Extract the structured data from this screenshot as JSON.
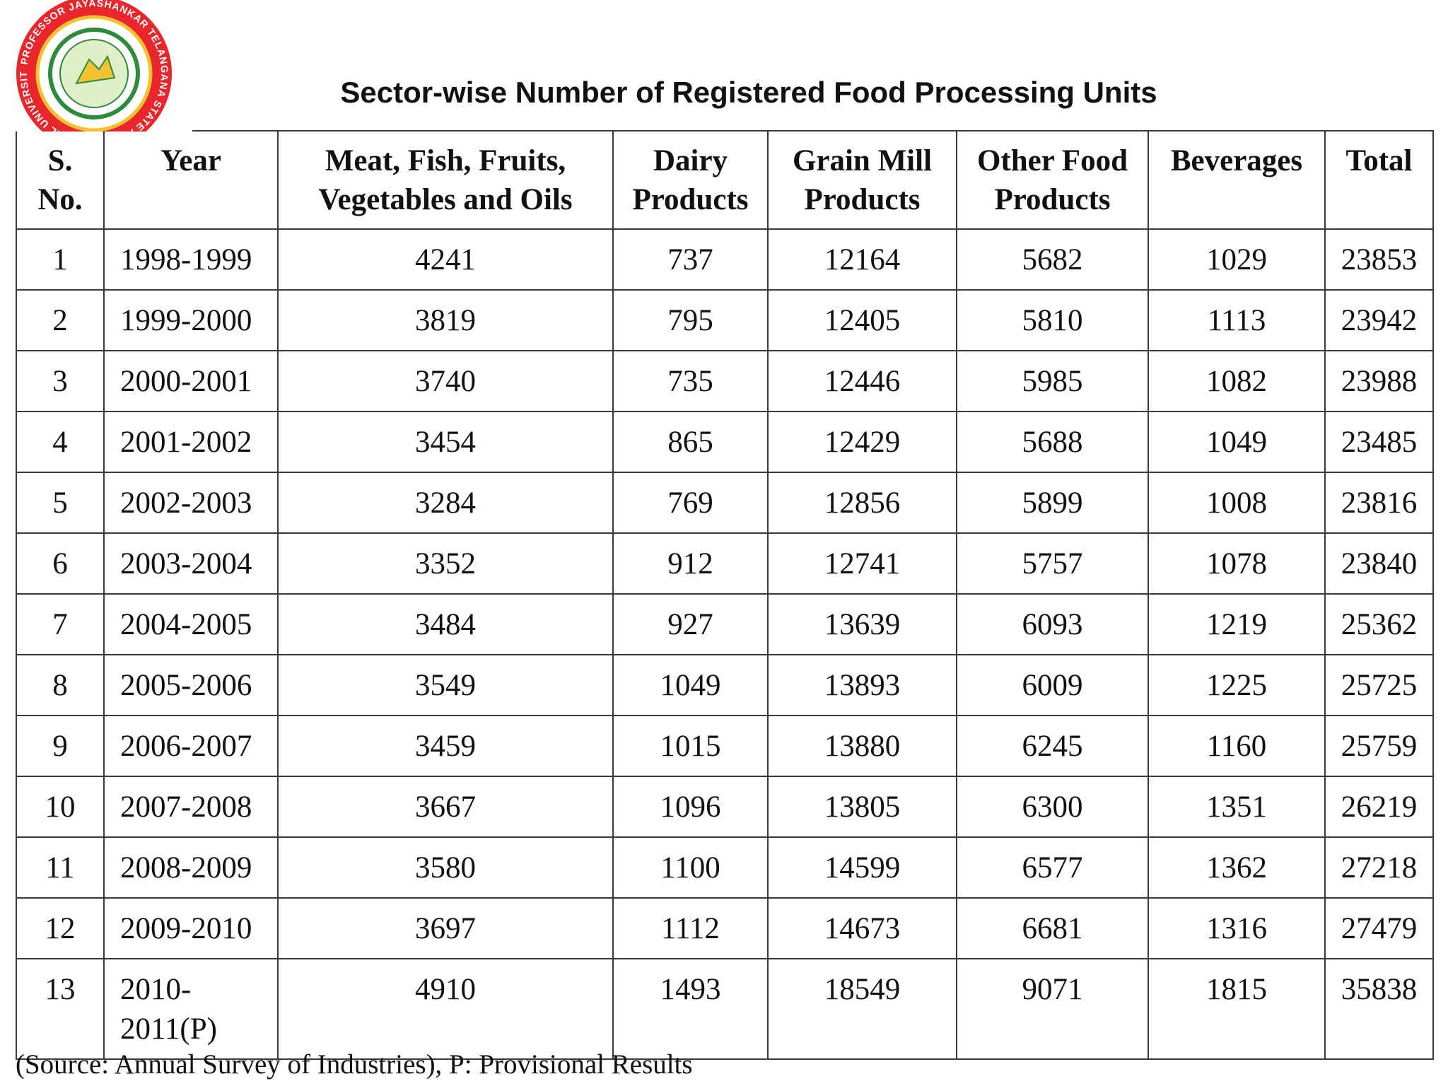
{
  "logo": {
    "ring_text": "PROFESSOR JAYASHANKAR TELANGANA STATE AGRICULTURAL UNIVERSITY"
  },
  "header": {
    "title": "Sector-wise Number of Registered Food Processing Units"
  },
  "table": {
    "headers": [
      [
        "S.",
        "No."
      ],
      [
        "Year"
      ],
      [
        "Meat, Fish, Fruits,",
        "Vegetables and Oils"
      ],
      [
        "Dairy",
        "Products"
      ],
      [
        "Grain Mill",
        "Products"
      ],
      [
        "Other Food",
        "Products"
      ],
      [
        "Beverages"
      ],
      [
        "Total"
      ]
    ],
    "rows": [
      [
        1,
        "1998-1999",
        4241,
        737,
        12164,
        5682,
        1029,
        23853
      ],
      [
        2,
        "1999-2000",
        3819,
        795,
        12405,
        5810,
        1113,
        23942
      ],
      [
        3,
        "2000-2001",
        3740,
        735,
        12446,
        5985,
        1082,
        23988
      ],
      [
        4,
        "2001-2002",
        3454,
        865,
        12429,
        5688,
        1049,
        23485
      ],
      [
        5,
        "2002-2003",
        3284,
        769,
        12856,
        5899,
        1008,
        23816
      ],
      [
        6,
        "2003-2004",
        3352,
        912,
        12741,
        5757,
        1078,
        23840
      ],
      [
        7,
        "2004-2005",
        3484,
        927,
        13639,
        6093,
        1219,
        25362
      ],
      [
        8,
        "2005-2006",
        3549,
        1049,
        13893,
        6009,
        1225,
        25725
      ],
      [
        9,
        "2006-2007",
        3459,
        1015,
        13880,
        6245,
        1160,
        25759
      ],
      [
        10,
        "2007-2008",
        3667,
        1096,
        13805,
        6300,
        1351,
        26219
      ],
      [
        11,
        "2008-2009",
        3580,
        1100,
        14599,
        6577,
        1362,
        27218
      ],
      [
        12,
        "2009-2010",
        3697,
        1112,
        14673,
        6681,
        1316,
        27479
      ],
      [
        13,
        "2010-2011(P)",
        4910,
        1493,
        18549,
        9071,
        1815,
        35838
      ]
    ]
  },
  "footer": {
    "note": "(Source: Annual Survey of Industries), P: Provisional Results"
  }
}
